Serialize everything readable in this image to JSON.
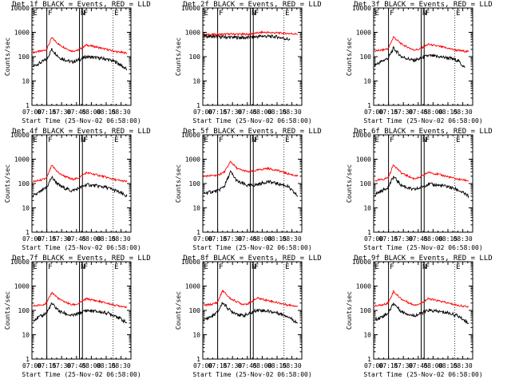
{
  "chart_data": [
    {
      "type": "line",
      "title": "Det 1f BLACK = Events, RED = LLD",
      "xlabel": "Start Time (25-Nov-02 06:58:00)",
      "ylabel": "Counts/sec",
      "y_scale": "log",
      "ylim": [
        1,
        10000
      ],
      "xlim": [
        "07:00",
        "08:40"
      ],
      "x_ticks": [
        "07:00",
        "07:15",
        "07:30",
        "07:45",
        "08:00",
        "08:15",
        "08:30"
      ],
      "y_ticks": [
        "1",
        "10",
        "100",
        "1000",
        "10000"
      ],
      "grid": false,
      "markers": [
        {
          "label": "E",
          "time": "07:00",
          "style": "dotted"
        },
        {
          "label": "F",
          "time": "07:15",
          "style": "solid"
        },
        {
          "label": "N",
          "time": "07:48",
          "style": "solid"
        },
        {
          "label": "F",
          "time": "07:51",
          "style": "solid"
        },
        {
          "label": "E",
          "time": "08:22",
          "style": "dotted"
        }
      ],
      "series": [
        {
          "color": "#ff0000",
          "x": [
            "07:01",
            "07:10",
            "07:15",
            "07:20",
            "07:28",
            "07:40",
            "07:46",
            "07:55",
            "08:05",
            "08:15",
            "08:25",
            "08:36"
          ],
          "values": [
            150,
            170,
            200,
            600,
            300,
            170,
            180,
            300,
            250,
            200,
            160,
            140
          ]
        },
        {
          "color": "#000000",
          "x": [
            "07:01",
            "07:10",
            "07:15",
            "07:20",
            "07:28",
            "07:40",
            "07:46",
            "07:55",
            "08:05",
            "08:15",
            "08:25",
            "08:36"
          ],
          "values": [
            40,
            60,
            80,
            200,
            90,
            60,
            70,
            100,
            90,
            80,
            60,
            30
          ]
        }
      ]
    },
    {
      "type": "line",
      "title": "Det 2f BLACK = Events, RED = LLD",
      "xlabel": "Start Time (25-Nov-02 06:58:00)",
      "ylabel": "Counts/sec",
      "y_scale": "log",
      "ylim": [
        1,
        10000
      ],
      "xlim": [
        "07:00",
        "08:40"
      ],
      "x_ticks": [
        "07:00",
        "07:15",
        "07:30",
        "07:45",
        "08:00",
        "08:15",
        "08:30"
      ],
      "y_ticks": [
        "1",
        "10",
        "100",
        "1000",
        "10000"
      ],
      "grid": false,
      "markers": [
        {
          "label": "E",
          "time": "07:00",
          "style": "dotted"
        },
        {
          "label": "F",
          "time": "07:15",
          "style": "solid"
        },
        {
          "label": "N",
          "time": "07:48",
          "style": "solid"
        },
        {
          "label": "F",
          "time": "07:51",
          "style": "solid"
        },
        {
          "label": "E",
          "time": "08:22",
          "style": "dotted"
        }
      ],
      "series": [
        {
          "color": "#ff0000",
          "x": [
            "07:01",
            "07:15",
            "07:30",
            "07:45",
            "08:00",
            "08:15",
            "08:36"
          ],
          "values": [
            800,
            820,
            850,
            830,
            1000,
            950,
            850
          ]
        },
        {
          "color": "#000000",
          "x": [
            "07:01",
            "07:15",
            "07:30",
            "07:45",
            "08:00",
            "08:15",
            "08:28"
          ],
          "values": [
            700,
            650,
            620,
            600,
            700,
            650,
            500
          ]
        }
      ]
    },
    {
      "type": "line",
      "title": "Det 3f BLACK = Events, RED = LLD",
      "xlabel": "Start Time (25-Nov-02 06:58:00)",
      "ylabel": "Counts/sec",
      "y_scale": "log",
      "ylim": [
        1,
        10000
      ],
      "xlim": [
        "07:00",
        "08:40"
      ],
      "x_ticks": [
        "07:00",
        "07:15",
        "07:30",
        "07:45",
        "08:00",
        "08:15",
        "08:30"
      ],
      "y_ticks": [
        "1",
        "10",
        "100",
        "1000",
        "10000"
      ],
      "grid": false,
      "markers": [
        {
          "label": "E",
          "time": "07:00",
          "style": "dotted"
        },
        {
          "label": "F",
          "time": "07:15",
          "style": "solid"
        },
        {
          "label": "N",
          "time": "07:48",
          "style": "solid"
        },
        {
          "label": "F",
          "time": "07:51",
          "style": "solid"
        },
        {
          "label": "E",
          "time": "08:22",
          "style": "dotted"
        }
      ],
      "series": [
        {
          "color": "#ff0000",
          "x": [
            "07:01",
            "07:10",
            "07:15",
            "07:20",
            "07:28",
            "07:40",
            "07:46",
            "07:55",
            "08:05",
            "08:15",
            "08:25",
            "08:36"
          ],
          "values": [
            170,
            190,
            220,
            650,
            330,
            190,
            200,
            320,
            270,
            220,
            180,
            160
          ]
        },
        {
          "color": "#000000",
          "x": [
            "07:01",
            "07:10",
            "07:15",
            "07:20",
            "07:28",
            "07:40",
            "07:46",
            "07:55",
            "08:05",
            "08:15",
            "08:25",
            "08:32"
          ],
          "values": [
            45,
            70,
            90,
            220,
            100,
            70,
            80,
            110,
            100,
            90,
            70,
            35
          ]
        }
      ]
    },
    {
      "type": "line",
      "title": "Det 4f BLACK = Events, RED = LLD",
      "xlabel": "Start Time (25-Nov-02 06:58:00)",
      "ylabel": "Counts/sec",
      "y_scale": "log",
      "ylim": [
        1,
        10000
      ],
      "xlim": [
        "07:00",
        "08:40"
      ],
      "x_ticks": [
        "07:00",
        "07:15",
        "07:30",
        "07:45",
        "08:00",
        "08:15",
        "08:30"
      ],
      "y_ticks": [
        "1",
        "10",
        "100",
        "1000",
        "10000"
      ],
      "grid": false,
      "markers": [
        {
          "label": "E",
          "time": "07:00",
          "style": "dotted"
        },
        {
          "label": "F",
          "time": "07:15",
          "style": "solid"
        },
        {
          "label": "N",
          "time": "07:48",
          "style": "solid"
        },
        {
          "label": "F",
          "time": "07:51",
          "style": "solid"
        },
        {
          "label": "E",
          "time": "08:22",
          "style": "dotted"
        }
      ],
      "series": [
        {
          "color": "#ff0000",
          "x": [
            "07:01",
            "07:10",
            "07:15",
            "07:20",
            "07:28",
            "07:40",
            "07:46",
            "07:55",
            "08:05",
            "08:15",
            "08:25",
            "08:36"
          ],
          "values": [
            120,
            140,
            170,
            550,
            250,
            150,
            160,
            280,
            230,
            180,
            140,
            120
          ]
        },
        {
          "color": "#000000",
          "x": [
            "07:01",
            "07:10",
            "07:15",
            "07:20",
            "07:28",
            "07:40",
            "07:46",
            "07:55",
            "08:05",
            "08:15",
            "08:25",
            "08:36"
          ],
          "values": [
            30,
            50,
            70,
            180,
            80,
            50,
            60,
            90,
            80,
            70,
            50,
            30
          ]
        }
      ]
    },
    {
      "type": "line",
      "title": "Det 5f BLACK = Events, RED = LLD",
      "xlabel": "Start Time (25-Nov-02 06:58:00)",
      "ylabel": "Counts/sec",
      "y_scale": "log",
      "ylim": [
        1,
        10000
      ],
      "xlim": [
        "07:00",
        "08:40"
      ],
      "x_ticks": [
        "07:00",
        "07:15",
        "07:30",
        "07:45",
        "08:00",
        "08:15",
        "08:30"
      ],
      "y_ticks": [
        "1",
        "10",
        "100",
        "1000",
        "10000"
      ],
      "grid": false,
      "markers": [
        {
          "label": "E",
          "time": "07:00",
          "style": "dotted"
        },
        {
          "label": "F",
          "time": "07:15",
          "style": "solid"
        },
        {
          "label": "N",
          "time": "07:48",
          "style": "solid"
        },
        {
          "label": "F",
          "time": "07:51",
          "style": "solid"
        },
        {
          "label": "E",
          "time": "08:22",
          "style": "dotted"
        }
      ],
      "series": [
        {
          "color": "#ff0000",
          "x": [
            "07:01",
            "07:15",
            "07:22",
            "07:28",
            "07:35",
            "07:46",
            "07:55",
            "08:05",
            "08:15",
            "08:25",
            "08:36"
          ],
          "values": [
            200,
            220,
            300,
            800,
            400,
            300,
            350,
            420,
            350,
            260,
            200
          ]
        },
        {
          "color": "#000000",
          "x": [
            "07:01",
            "07:15",
            "07:22",
            "07:28",
            "07:35",
            "07:46",
            "07:55",
            "08:05",
            "08:15",
            "08:25",
            "08:36"
          ],
          "values": [
            40,
            50,
            80,
            300,
            120,
            80,
            90,
            120,
            100,
            80,
            30
          ]
        }
      ]
    },
    {
      "type": "line",
      "title": "Det 6f BLACK = Events, RED = LLD",
      "xlabel": "Start Time (25-Nov-02 06:58:00)",
      "ylabel": "Counts/sec",
      "y_scale": "log",
      "ylim": [
        1,
        10000
      ],
      "xlim": [
        "07:00",
        "08:40"
      ],
      "x_ticks": [
        "07:00",
        "07:15",
        "07:30",
        "07:45",
        "08:00",
        "08:15",
        "08:30"
      ],
      "y_ticks": [
        "1",
        "10",
        "100",
        "1000",
        "10000"
      ],
      "grid": false,
      "markers": [
        {
          "label": "E",
          "time": "07:00",
          "style": "dotted"
        },
        {
          "label": "F",
          "time": "07:15",
          "style": "solid"
        },
        {
          "label": "N",
          "time": "07:48",
          "style": "solid"
        },
        {
          "label": "F",
          "time": "07:51",
          "style": "solid"
        },
        {
          "label": "E",
          "time": "08:22",
          "style": "dotted"
        }
      ],
      "series": [
        {
          "color": "#ff0000",
          "x": [
            "07:01",
            "07:10",
            "07:15",
            "07:20",
            "07:28",
            "07:40",
            "07:46",
            "07:55",
            "08:05",
            "08:15",
            "08:25",
            "08:36"
          ],
          "values": [
            130,
            150,
            180,
            600,
            270,
            160,
            170,
            290,
            240,
            190,
            150,
            130
          ]
        },
        {
          "color": "#000000",
          "x": [
            "07:01",
            "07:10",
            "07:15",
            "07:20",
            "07:28",
            "07:40",
            "07:46",
            "07:55",
            "08:05",
            "08:15",
            "08:25",
            "08:36"
          ],
          "values": [
            35,
            55,
            75,
            190,
            85,
            55,
            65,
            95,
            85,
            75,
            55,
            30
          ]
        }
      ]
    },
    {
      "type": "line",
      "title": "Det 7f BLACK = Events, RED = LLD",
      "xlabel": "Start Time (25-Nov-02 06:58:00)",
      "ylabel": "Counts/sec",
      "y_scale": "log",
      "ylim": [
        1,
        10000
      ],
      "xlim": [
        "07:00",
        "08:40"
      ],
      "x_ticks": [
        "07:00",
        "07:15",
        "07:30",
        "07:45",
        "08:00",
        "08:15",
        "08:30"
      ],
      "y_ticks": [
        "1",
        "10",
        "100",
        "1000",
        "10000"
      ],
      "grid": false,
      "markers": [
        {
          "label": "E",
          "time": "07:00",
          "style": "dotted"
        },
        {
          "label": "F",
          "time": "07:15",
          "style": "solid"
        },
        {
          "label": "N",
          "time": "07:48",
          "style": "solid"
        },
        {
          "label": "F",
          "time": "07:51",
          "style": "solid"
        },
        {
          "label": "E",
          "time": "08:22",
          "style": "dotted"
        }
      ],
      "series": [
        {
          "color": "#ff0000",
          "x": [
            "07:01",
            "07:10",
            "07:15",
            "07:20",
            "07:28",
            "07:40",
            "07:46",
            "07:55",
            "08:05",
            "08:15",
            "08:25",
            "08:36"
          ],
          "values": [
            150,
            170,
            200,
            550,
            280,
            170,
            180,
            300,
            250,
            200,
            160,
            140
          ]
        },
        {
          "color": "#000000",
          "x": [
            "07:01",
            "07:10",
            "07:15",
            "07:20",
            "07:28",
            "07:40",
            "07:46",
            "07:55",
            "08:05",
            "08:15",
            "08:25",
            "08:36"
          ],
          "values": [
            40,
            60,
            80,
            190,
            90,
            60,
            70,
            100,
            90,
            80,
            60,
            30
          ]
        }
      ]
    },
    {
      "type": "line",
      "title": "Det 8f BLACK = Events, RED = LLD",
      "xlabel": "Start Time (25-Nov-02 06:58:00)",
      "ylabel": "Counts/sec",
      "y_scale": "log",
      "ylim": [
        1,
        10000
      ],
      "xlim": [
        "07:00",
        "08:40"
      ],
      "x_ticks": [
        "07:00",
        "07:15",
        "07:30",
        "07:45",
        "08:00",
        "08:15",
        "08:30"
      ],
      "y_ticks": [
        "1",
        "10",
        "100",
        "1000",
        "10000"
      ],
      "grid": false,
      "markers": [
        {
          "label": "E",
          "time": "07:00",
          "style": "dotted"
        },
        {
          "label": "F",
          "time": "07:15",
          "style": "solid"
        },
        {
          "label": "N",
          "time": "07:48",
          "style": "solid"
        },
        {
          "label": "F",
          "time": "07:51",
          "style": "solid"
        },
        {
          "label": "E",
          "time": "08:22",
          "style": "dotted"
        }
      ],
      "series": [
        {
          "color": "#ff0000",
          "x": [
            "07:01",
            "07:10",
            "07:15",
            "07:20",
            "07:28",
            "07:40",
            "07:46",
            "07:55",
            "08:05",
            "08:15",
            "08:25",
            "08:36"
          ],
          "values": [
            160,
            180,
            220,
            650,
            300,
            180,
            190,
            320,
            260,
            210,
            170,
            150
          ]
        },
        {
          "color": "#000000",
          "x": [
            "07:01",
            "07:10",
            "07:15",
            "07:20",
            "07:28",
            "07:40",
            "07:46",
            "07:55",
            "08:05",
            "08:15",
            "08:25",
            "08:36"
          ],
          "values": [
            40,
            60,
            85,
            210,
            95,
            60,
            70,
            105,
            95,
            80,
            60,
            30
          ]
        }
      ]
    },
    {
      "type": "line",
      "title": "Det 9f BLACK = Events, RED = LLD",
      "xlabel": "Start Time (25-Nov-02 06:58:00)",
      "ylabel": "Counts/sec",
      "y_scale": "log",
      "ylim": [
        1,
        10000
      ],
      "xlim": [
        "07:00",
        "08:40"
      ],
      "x_ticks": [
        "07:00",
        "07:15",
        "07:30",
        "07:45",
        "08:00",
        "08:15",
        "08:30"
      ],
      "y_ticks": [
        "1",
        "10",
        "100",
        "1000",
        "10000"
      ],
      "grid": false,
      "markers": [
        {
          "label": "E",
          "time": "07:00",
          "style": "dotted"
        },
        {
          "label": "F",
          "time": "07:15",
          "style": "solid"
        },
        {
          "label": "N",
          "time": "07:48",
          "style": "solid"
        },
        {
          "label": "F",
          "time": "07:51",
          "style": "solid"
        },
        {
          "label": "E",
          "time": "08:22",
          "style": "dotted"
        }
      ],
      "series": [
        {
          "color": "#ff0000",
          "x": [
            "07:01",
            "07:10",
            "07:15",
            "07:20",
            "07:28",
            "07:40",
            "07:46",
            "07:55",
            "08:05",
            "08:15",
            "08:25",
            "08:36"
          ],
          "values": [
            150,
            170,
            210,
            600,
            290,
            170,
            180,
            300,
            250,
            200,
            160,
            140
          ]
        },
        {
          "color": "#000000",
          "x": [
            "07:01",
            "07:10",
            "07:15",
            "07:20",
            "07:28",
            "07:40",
            "07:46",
            "07:55",
            "08:05",
            "08:15",
            "08:25",
            "08:36"
          ],
          "values": [
            40,
            60,
            80,
            200,
            90,
            60,
            70,
            100,
            90,
            80,
            60,
            30
          ]
        }
      ]
    }
  ]
}
